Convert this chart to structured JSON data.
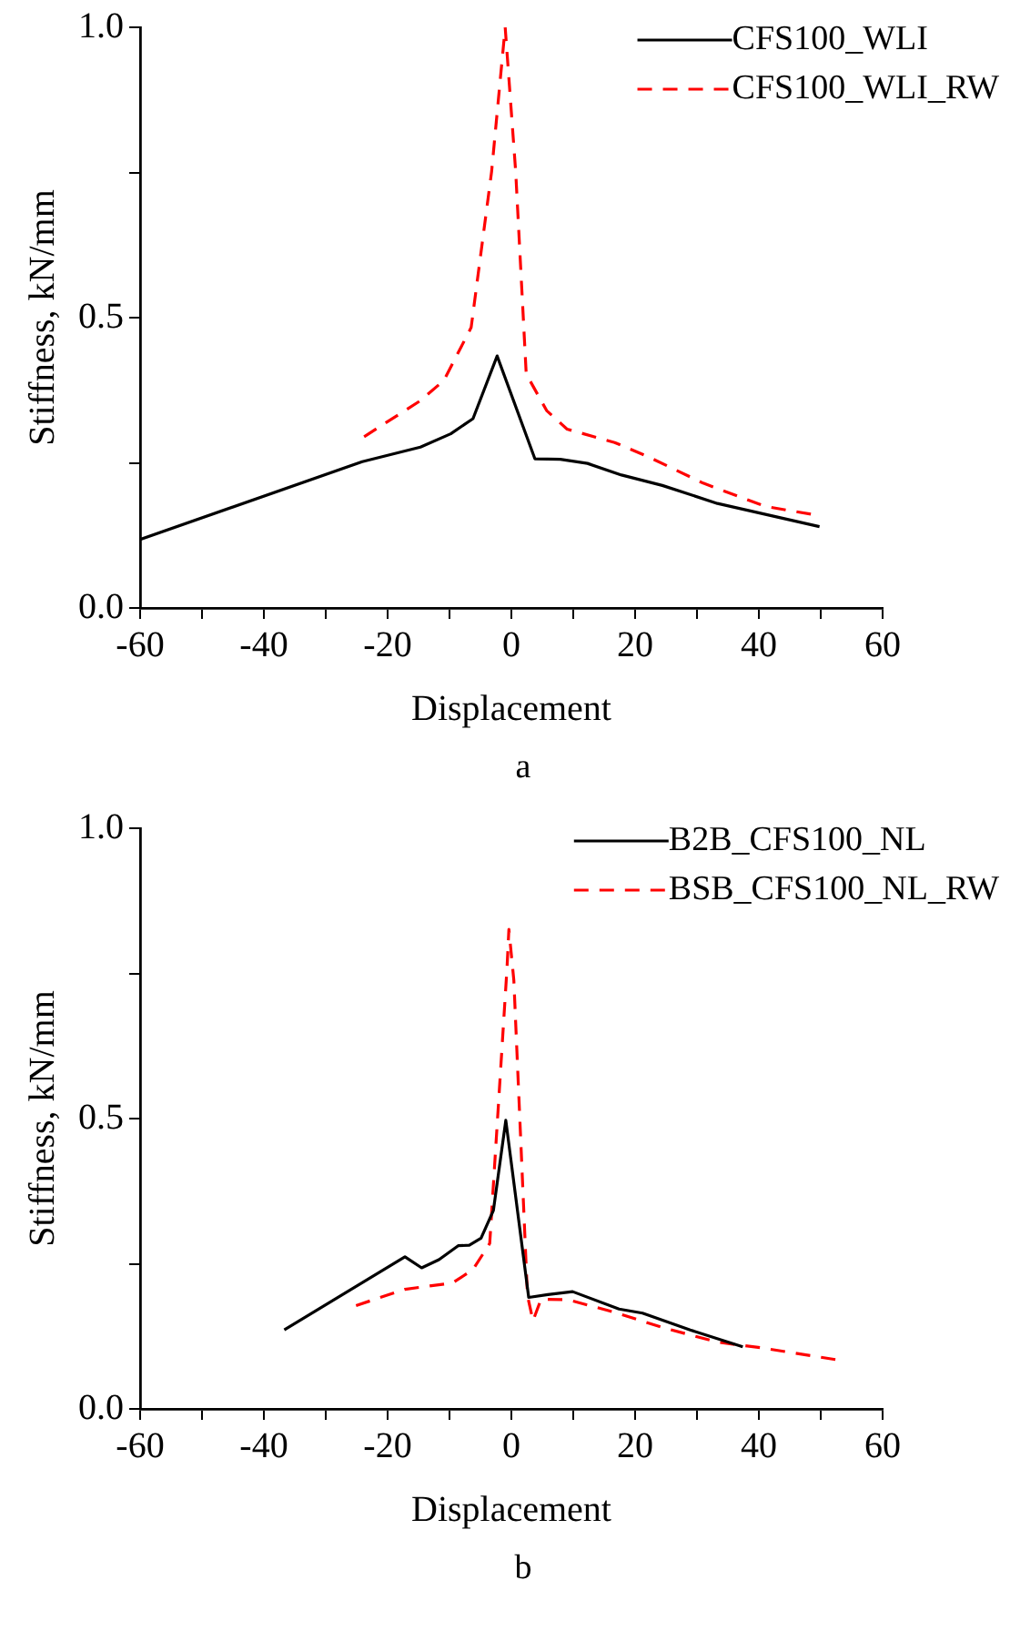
{
  "chart_data": [
    {
      "type": "line",
      "xlabel": "Displacement",
      "ylabel": "Stiffness, kN/mm",
      "annotations": [
        "a"
      ],
      "xlim": [
        -60,
        60
      ],
      "ylim": [
        0,
        1
      ],
      "xticks": [
        -60,
        {
          "value": -50,
          "label": null
        },
        -40,
        {
          "value": -30,
          "label": null
        },
        -20,
        {
          "value": -10,
          "label": null
        },
        0,
        {
          "value": 10,
          "label": null
        },
        20,
        {
          "value": 30,
          "label": null
        },
        40,
        {
          "value": 50,
          "label": null
        },
        60
      ],
      "yticks": [
        {
          "value": 0,
          "label": "0.0"
        },
        {
          "value": 0.25,
          "label": null
        },
        0.5,
        {
          "value": 0.75,
          "label": null
        },
        {
          "value": 1,
          "label": "1.0"
        }
      ],
      "grid": false,
      "legend": "top right",
      "marker": "none",
      "series": [
        {
          "name": "CFS100_WLI",
          "color": "#000000",
          "line_style": "solid",
          "x": [
            -60,
            -24.1,
            -14.7,
            -9.8,
            -6.2,
            -2.3,
            3.8,
            7.9,
            12.3,
            17.8,
            24.4,
            33.3,
            49.8
          ],
          "values": [
            0.118,
            0.252,
            0.277,
            0.3,
            0.326,
            0.434,
            0.257,
            0.256,
            0.249,
            0.229,
            0.211,
            0.18,
            0.14
          ]
        },
        {
          "name": "CFS100_WLI_RW",
          "color": "#ff0000",
          "line_style": "dashed",
          "x": [
            -23.8,
            -14.7,
            -10.9,
            -6.5,
            -3.2,
            -1,
            0.7,
            2.4,
            5.7,
            9,
            16.7,
            22.2,
            31,
            41,
            48.7
          ],
          "values": [
            0.295,
            0.357,
            0.392,
            0.483,
            0.751,
            1,
            0.751,
            0.403,
            0.34,
            0.308,
            0.285,
            0.26,
            0.215,
            0.175,
            0.161
          ]
        }
      ]
    },
    {
      "type": "line",
      "xlabel": "Displacement",
      "ylabel": "Stiffness, kN/mm",
      "annotations": [
        "b"
      ],
      "xlim": [
        -60,
        60
      ],
      "ylim": [
        0,
        1
      ],
      "xticks": [
        -60,
        {
          "value": -50,
          "label": null
        },
        -40,
        {
          "value": -30,
          "label": null
        },
        -20,
        {
          "value": -10,
          "label": null
        },
        0,
        {
          "value": 10,
          "label": null
        },
        20,
        {
          "value": 30,
          "label": null
        },
        40,
        {
          "value": 50,
          "label": null
        },
        60
      ],
      "yticks": [
        {
          "value": 0,
          "label": "0.0"
        },
        {
          "value": 0.25,
          "label": null
        },
        0.5,
        {
          "value": 0.75,
          "label": null
        },
        {
          "value": 1,
          "label": "1.0"
        }
      ],
      "grid": false,
      "legend": "top right",
      "marker": "none",
      "series": [
        {
          "name": "B2B_CFS100_NL",
          "color": "#000000",
          "line_style": "solid",
          "x": [
            -36.7,
            -17.2,
            -14.5,
            -11.7,
            -8.6,
            -6.8,
            -4.9,
            -2.9,
            -0.9,
            2.8,
            5.9,
            9.9,
            17.4,
            21.2,
            28.9,
            37.4
          ],
          "values": [
            0.136,
            0.262,
            0.243,
            0.257,
            0.281,
            0.282,
            0.294,
            0.342,
            0.497,
            0.192,
            0.197,
            0.202,
            0.172,
            0.165,
            0.136,
            0.107
          ]
        },
        {
          "name": "BSB_CFS100_NL_RW",
          "color": "#ff0000",
          "line_style": "dashed",
          "x": [
            -25.1,
            -17.2,
            -9.5,
            -6.2,
            -3.5,
            -0.7,
            -0.4,
            0.4,
            2.6,
            3.5,
            4.8,
            9.2,
            16.8,
            24.5,
            33.3,
            39.9,
            53
          ],
          "values": [
            0.178,
            0.206,
            0.217,
            0.24,
            0.285,
            0.76,
            0.826,
            0.738,
            0.195,
            0.152,
            0.189,
            0.188,
            0.166,
            0.14,
            0.115,
            0.106,
            0.084
          ]
        }
      ]
    }
  ]
}
